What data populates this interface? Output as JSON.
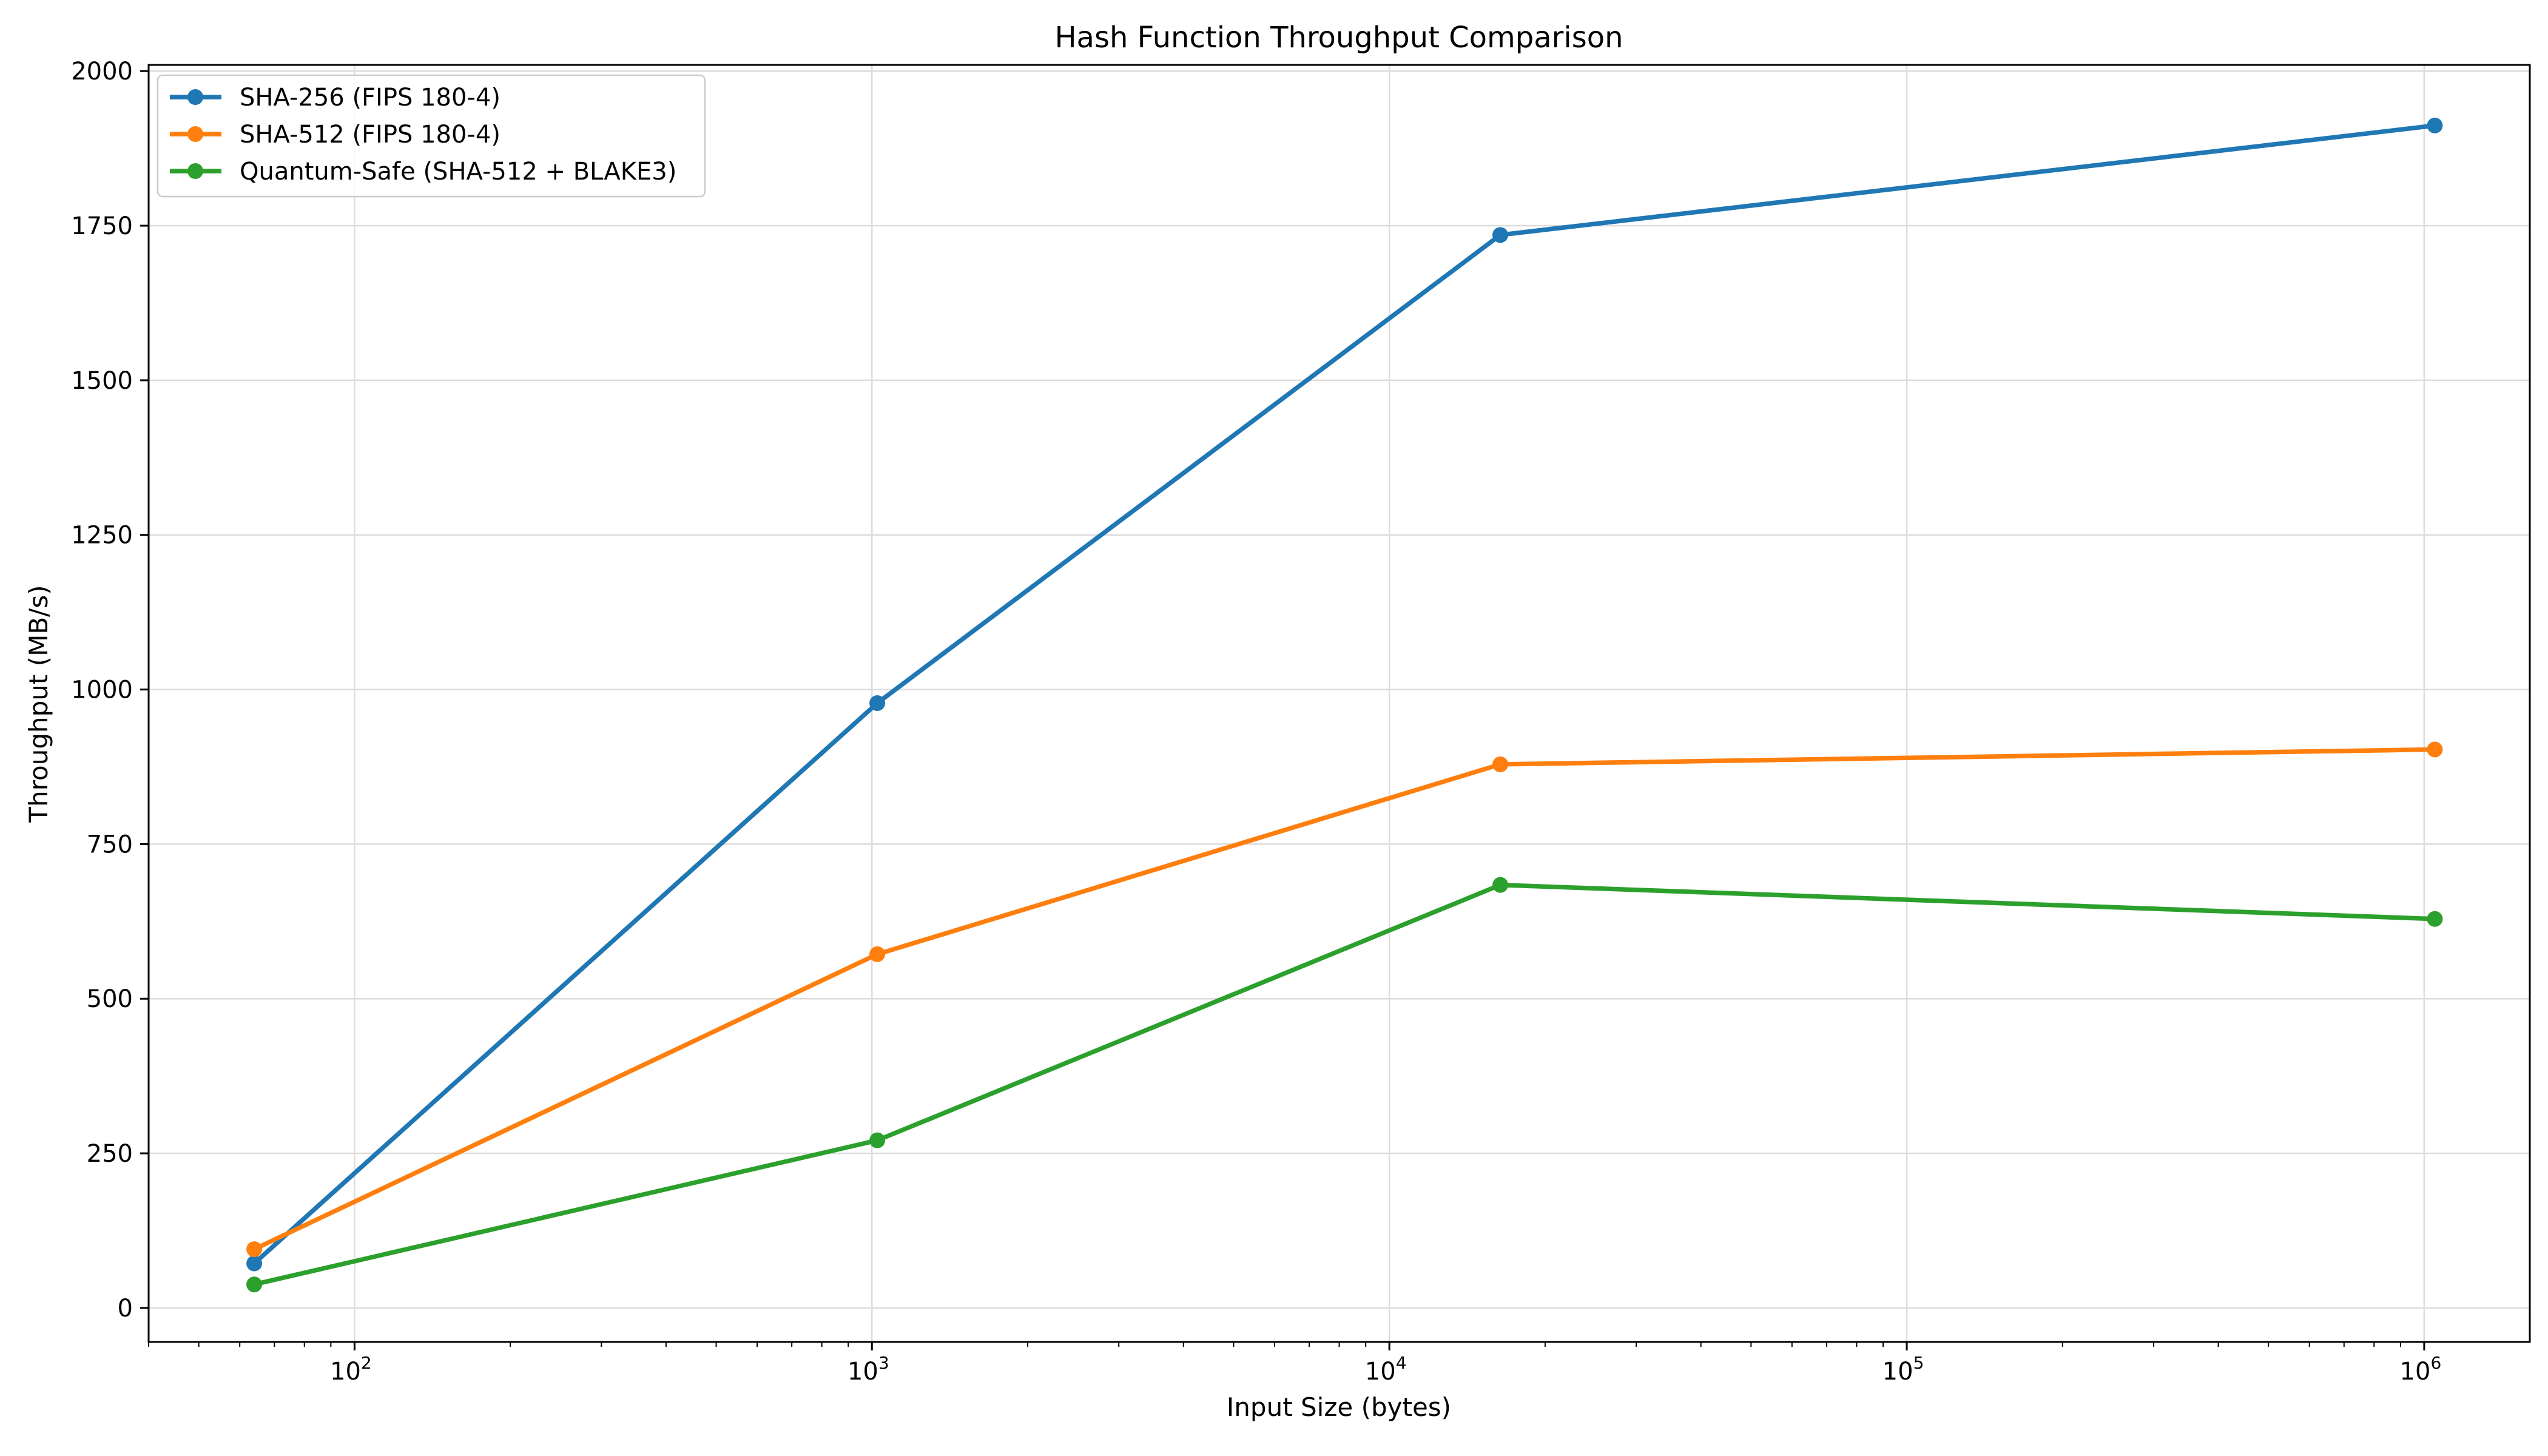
{
  "chart_data": {
    "type": "line",
    "title": "Hash Function Throughput Comparison",
    "xlabel": "Input Size (bytes)",
    "ylabel": "Throughput (MB/s)",
    "x_scale": "log",
    "xlim": [
      40,
      1600000
    ],
    "ylim": [
      -55,
      2010
    ],
    "x_ticks": [
      {
        "value": 100,
        "base": "10",
        "exp": "2"
      },
      {
        "value": 1000,
        "base": "10",
        "exp": "3"
      },
      {
        "value": 10000,
        "base": "10",
        "exp": "4"
      },
      {
        "value": 100000,
        "base": "10",
        "exp": "5"
      },
      {
        "value": 1000000,
        "base": "10",
        "exp": "6"
      }
    ],
    "y_ticks": [
      0,
      250,
      500,
      750,
      1000,
      1250,
      1500,
      1750,
      2000
    ],
    "grid": true,
    "legend_position": "top-left",
    "x": [
      64,
      1024,
      16384,
      1048576
    ],
    "series": [
      {
        "name": "SHA-256 (FIPS 180-4)",
        "color": "#1f77b4",
        "values": [
          72,
          978,
          1735,
          1912
        ]
      },
      {
        "name": "SHA-512 (FIPS 180-4)",
        "color": "#ff7f0e",
        "values": [
          95,
          572,
          879,
          903
        ]
      },
      {
        "name": "Quantum-Safe (SHA-512 + BLAKE3)",
        "color": "#2ca02c",
        "values": [
          38,
          271,
          684,
          629
        ]
      }
    ]
  }
}
